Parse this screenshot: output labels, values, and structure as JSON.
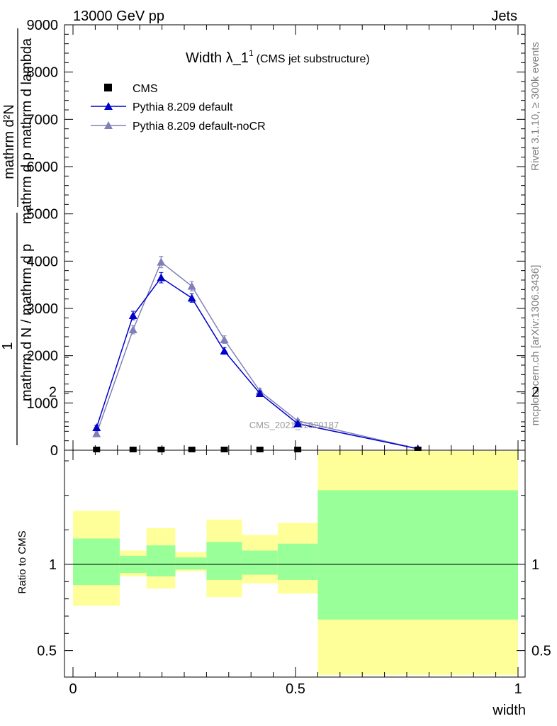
{
  "header": {
    "left": "13000 GeV pp",
    "right": "Jets"
  },
  "side_labels": {
    "rivet": "Rivet 3.1.10, ≥ 300k events",
    "mcplots": "mcplots.cern.ch [arXiv:1306.3436]"
  },
  "chart_data": {
    "type": "line",
    "title_main": "Width λ_1",
    "title_sup": "1",
    "title_sub": "(CMS jet substructure)",
    "watermark": "CMS_2021_I1920187",
    "xlabel": "width",
    "ylabel_main": {
      "numerator_1": "1",
      "denominator_1": "mathrm d N / mathrm d p",
      "numerator_2": "mathrm d²N",
      "denominator_2": "mathrm d p mathrm d lambda"
    },
    "ylabel_ratio": "Ratio to CMS",
    "xlim": [
      0,
      1
    ],
    "ylim_main": [
      0,
      9000
    ],
    "ylim_ratio": [
      0.4,
      2.3
    ],
    "x_ticks": [
      "0",
      "0.5",
      "1"
    ],
    "y_ticks_main": [
      "0",
      "1000",
      "2000",
      "3000",
      "4000",
      "5000",
      "6000",
      "7000",
      "8000",
      "9000"
    ],
    "y_ticks_ratio": [
      "0.5",
      "1",
      "2"
    ],
    "legend_position": "top-left",
    "bin_edges": [
      0,
      0.105,
      0.165,
      0.23,
      0.3,
      0.38,
      0.46,
      0.55,
      1.0
    ],
    "x_points": [
      0.053,
      0.135,
      0.198,
      0.267,
      0.34,
      0.42,
      0.505,
      0.775
    ],
    "series": [
      {
        "name": "CMS",
        "marker": "square",
        "color": "#000000",
        "values": [
          0,
          0,
          0,
          0,
          0,
          0,
          0,
          0
        ]
      },
      {
        "name": "Pythia 8.209 default",
        "marker": "triangle",
        "color": "#0000cc",
        "values": [
          480,
          2850,
          3650,
          3220,
          2100,
          1200,
          560,
          30
        ],
        "errors": [
          40,
          90,
          110,
          90,
          70,
          50,
          30,
          10
        ]
      },
      {
        "name": "Pythia 8.209 default-noCR",
        "marker": "triangle",
        "color": "#8080b8",
        "values": [
          350,
          2550,
          3980,
          3470,
          2340,
          1250,
          620,
          30
        ],
        "errors": [
          40,
          90,
          120,
          100,
          80,
          50,
          30,
          10
        ]
      }
    ],
    "ratio_bands": {
      "yellow_lo": [
        0.76,
        0.93,
        0.86,
        0.96,
        0.81,
        0.89,
        0.83,
        0.36
      ],
      "yellow_hi": [
        1.31,
        1.08,
        1.21,
        1.07,
        1.26,
        1.17,
        1.24,
        1.73
      ],
      "green_lo": [
        0.88,
        0.95,
        0.93,
        0.97,
        0.91,
        0.94,
        0.91,
        0.68
      ],
      "green_hi": [
        1.15,
        1.05,
        1.11,
        1.04,
        1.13,
        1.08,
        1.12,
        1.43
      ]
    }
  }
}
